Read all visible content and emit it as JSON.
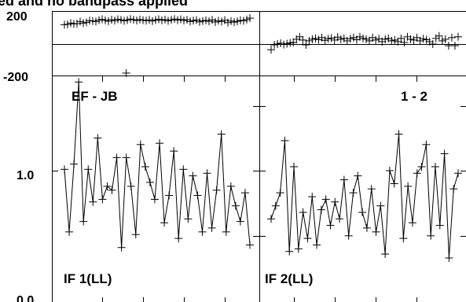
{
  "title": "ed and no bandpass applied",
  "phase_ticks": [
    "200",
    "-200"
  ],
  "amp_ticks": [
    "1.0",
    "0.0"
  ],
  "panels": [
    {
      "baseline": "EF - JB",
      "if_label": "IF 1(LL)"
    },
    {
      "baseline": "",
      "if_label": "IF 2(LL)",
      "corner": "1 - 2"
    }
  ],
  "chart_data": [
    {
      "type": "scatter",
      "panel": "IF 1(LL) phase",
      "ylim": [
        -200,
        200
      ],
      "x": [
        1,
        2,
        3,
        4,
        5,
        6,
        7,
        8,
        9,
        10,
        11,
        12,
        13,
        14,
        15,
        16,
        17,
        18,
        19,
        20,
        21,
        22,
        23,
        24,
        25,
        26,
        27,
        28,
        29,
        30,
        31,
        32,
        33,
        34,
        35,
        36,
        37,
        38,
        39,
        40,
        41,
        42,
        43,
        44,
        45,
        46,
        47,
        48,
        49,
        50,
        51,
        52,
        53,
        54,
        55,
        56,
        57,
        58,
        59,
        60
      ],
      "values": [
        115,
        117,
        125,
        120,
        122,
        135,
        125,
        130,
        140,
        138,
        135,
        143,
        148,
        142,
        137,
        146,
        140,
        149,
        145,
        139,
        144,
        150,
        146,
        141,
        147,
        143,
        140,
        145,
        138,
        144,
        149,
        142,
        147,
        139,
        145,
        150,
        143,
        148,
        141,
        146,
        135,
        140,
        144,
        133,
        138,
        142,
        136,
        145,
        132,
        140,
        135,
        143,
        128,
        138,
        131,
        136,
        142,
        139,
        147,
        156
      ],
      "outlier": {
        "x": 20,
        "y": -185
      },
      "reference_line": 0
    },
    {
      "type": "line",
      "panel": "IF 1(LL) amplitude",
      "ylim": [
        0.0,
        1.75
      ],
      "x": [
        1,
        2,
        3,
        4,
        5,
        6,
        7,
        8,
        9,
        10,
        11,
        12,
        13,
        14,
        15,
        16,
        17,
        18,
        19,
        20,
        21,
        22,
        23,
        24,
        25,
        26,
        27,
        28,
        29,
        30,
        31,
        32,
        33,
        34,
        35,
        36,
        37,
        38,
        39,
        40
      ],
      "values": [
        1.03,
        0.55,
        1.07,
        1.7,
        0.63,
        1.03,
        0.78,
        1.27,
        0.8,
        0.9,
        0.87,
        1.12,
        0.43,
        1.12,
        0.9,
        0.53,
        1.22,
        1.05,
        0.93,
        0.8,
        1.23,
        0.62,
        0.83,
        1.17,
        0.5,
        1.03,
        0.65,
        0.98,
        0.83,
        0.55,
        1.0,
        0.58,
        0.87,
        1.3,
        0.55,
        0.9,
        0.75,
        0.63,
        0.85,
        0.45
      ]
    },
    {
      "type": "scatter",
      "panel": "IF 2(LL) phase",
      "ylim": [
        -200,
        200
      ],
      "x": [
        1,
        2,
        3,
        4,
        5,
        6,
        7,
        8,
        9,
        10,
        11,
        12,
        13,
        14,
        15,
        16,
        17,
        18,
        19,
        20,
        21,
        22,
        23,
        24,
        25,
        26,
        27,
        28,
        29,
        30,
        31,
        32,
        33,
        34,
        35,
        36,
        37,
        38,
        39,
        40,
        41,
        42,
        43,
        44,
        45,
        46,
        47,
        48,
        49,
        50,
        51,
        52,
        53,
        54,
        55,
        56,
        57,
        58,
        59,
        60
      ],
      "values": [
        -40,
        -10,
        -5,
        0,
        -8,
        -3,
        2,
        5,
        25,
        40,
        20,
        -10,
        15,
        25,
        30,
        22,
        35,
        18,
        28,
        32,
        20,
        38,
        25,
        30,
        15,
        28,
        35,
        22,
        40,
        30,
        25,
        15,
        35,
        20,
        28,
        10,
        25,
        30,
        15,
        20,
        10,
        30,
        5,
        40,
        25,
        20,
        35,
        15,
        28,
        22,
        10,
        -5,
        30,
        45,
        15,
        25,
        -15,
        35,
        -15,
        40
      ]
    },
    {
      "type": "line",
      "panel": "IF 2(LL) amplitude",
      "ylim": [
        0.0,
        1.75
      ],
      "x": [
        1,
        2,
        3,
        4,
        5,
        6,
        7,
        8,
        9,
        10,
        11,
        12,
        13,
        14,
        15,
        16,
        17,
        18,
        19,
        20,
        21,
        22,
        23,
        24,
        25,
        26,
        27,
        28,
        29,
        30,
        31,
        32,
        33,
        34,
        35,
        36,
        37,
        38,
        39,
        40,
        41,
        42
      ],
      "values": [
        0.65,
        0.75,
        0.85,
        1.25,
        0.4,
        1.05,
        0.42,
        0.7,
        0.5,
        0.82,
        0.45,
        0.72,
        0.8,
        0.6,
        0.78,
        0.65,
        0.95,
        0.52,
        0.85,
        0.98,
        0.7,
        0.58,
        0.88,
        0.55,
        0.75,
        0.38,
        1.02,
        0.92,
        1.3,
        0.5,
        0.9,
        0.62,
        1.0,
        1.05,
        1.22,
        0.52,
        1.05,
        0.6,
        1.15,
        0.35,
        0.88,
        1.0
      ]
    }
  ]
}
